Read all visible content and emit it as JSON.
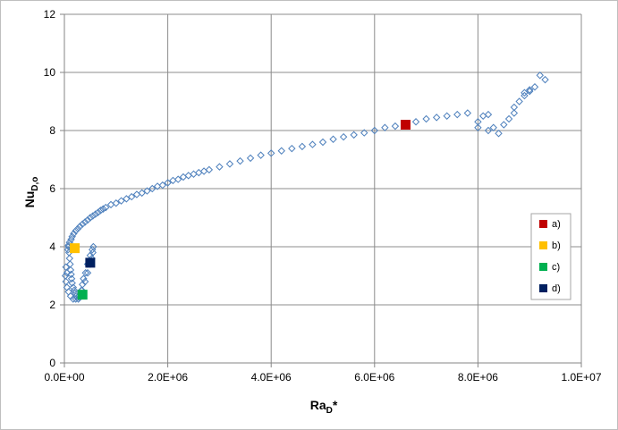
{
  "chart_data": {
    "type": "scatter",
    "title": "",
    "xlabel": "Ra",
    "xlabel_sub": "D",
    "xlabel_suffix": "*",
    "ylabel": "Nu",
    "ylabel_sub": "D,o",
    "xlim": [
      0,
      10000000
    ],
    "ylim": [
      0,
      12
    ],
    "x_ticks": [
      0,
      2000000,
      4000000,
      6000000,
      8000000,
      10000000
    ],
    "x_tick_labels": [
      "0.0E+00",
      "2.0E+06",
      "4.0E+06",
      "6.0E+06",
      "8.0E+06",
      "1.0E+07"
    ],
    "y_ticks": [
      0,
      2,
      4,
      6,
      8,
      10,
      12
    ],
    "y_tick_labels": [
      "0",
      "2",
      "4",
      "6",
      "8",
      "10",
      "12"
    ],
    "grid": true,
    "legend_position": "right",
    "scatter_color": "#4f81bd",
    "series": [
      {
        "marker": "diamond-open",
        "x": [
          50000,
          30000,
          20000,
          30000,
          50000,
          80000,
          120000,
          170000,
          220000,
          280000,
          340000,
          400000,
          450000,
          500000,
          530000,
          550000,
          560000,
          540000,
          500000,
          450000,
          410000,
          370000,
          350000,
          330000,
          310000,
          290000,
          270000,
          250000,
          230000,
          210000,
          190000,
          170000,
          150000,
          140000,
          130000,
          120000,
          110000,
          100000,
          90000,
          80000,
          70000,
          80000,
          100000,
          130000,
          150000,
          180000,
          220000,
          260000,
          300000,
          350000,
          400000,
          450000,
          500000,
          550000,
          600000,
          650000,
          700000,
          750000,
          800000,
          900000,
          1000000,
          1100000,
          1200000,
          1300000,
          1400000,
          1500000,
          1600000,
          1700000,
          1800000,
          1900000,
          2000000,
          2100000,
          2200000,
          2300000,
          2400000,
          2500000,
          2600000,
          2700000,
          2800000,
          3000000,
          3200000,
          3400000,
          3600000,
          3800000,
          4000000,
          4200000,
          4400000,
          4600000,
          4800000,
          5000000,
          5200000,
          5400000,
          5600000,
          5800000,
          6000000,
          6200000,
          6400000,
          6600000,
          6800000,
          7000000,
          7200000,
          7400000,
          7600000,
          7800000,
          8000000,
          8100000,
          8200000,
          8300000,
          8400000,
          8500000,
          8600000,
          8700000,
          8800000,
          8900000,
          9000000,
          9100000,
          9200000,
          9300000,
          8700000,
          8900000,
          9000000,
          8000000,
          8200000
        ],
        "y": [
          3.1,
          3.3,
          3.0,
          2.8,
          2.6,
          2.45,
          2.3,
          2.2,
          2.2,
          2.3,
          2.5,
          2.8,
          3.1,
          3.4,
          3.6,
          3.8,
          4.0,
          3.9,
          3.7,
          3.4,
          3.1,
          2.9,
          2.7,
          2.5,
          2.35,
          2.25,
          2.2,
          2.25,
          2.3,
          2.4,
          2.5,
          2.6,
          2.75,
          2.9,
          3.05,
          3.2,
          3.4,
          3.6,
          3.8,
          4.0,
          3.9,
          4.05,
          4.15,
          4.25,
          4.35,
          4.45,
          4.55,
          4.62,
          4.7,
          4.78,
          4.85,
          4.92,
          5.0,
          5.06,
          5.12,
          5.18,
          5.25,
          5.3,
          5.35,
          5.45,
          5.5,
          5.58,
          5.65,
          5.72,
          5.8,
          5.85,
          5.92,
          6.0,
          6.08,
          6.12,
          6.2,
          6.28,
          6.32,
          6.4,
          6.45,
          6.5,
          6.55,
          6.6,
          6.65,
          6.75,
          6.85,
          6.95,
          7.05,
          7.15,
          7.22,
          7.3,
          7.38,
          7.45,
          7.52,
          7.6,
          7.7,
          7.78,
          7.85,
          7.92,
          8.0,
          8.1,
          8.15,
          8.2,
          8.3,
          8.4,
          8.45,
          8.5,
          8.55,
          8.6,
          8.3,
          8.5,
          8.0,
          8.1,
          7.9,
          8.2,
          8.4,
          8.8,
          9.0,
          9.2,
          9.4,
          9.5,
          9.9,
          9.75,
          8.6,
          9.3,
          9.35,
          8.1,
          8.55
        ]
      }
    ],
    "highlights": [
      {
        "label": "a)",
        "x": 6600000,
        "y": 8.2,
        "color": "#c00000"
      },
      {
        "label": "b)",
        "x": 200000,
        "y": 3.95,
        "color": "#ffc000"
      },
      {
        "label": "c)",
        "x": 350000,
        "y": 2.35,
        "color": "#00b050"
      },
      {
        "label": "d)",
        "x": 500000,
        "y": 3.45,
        "color": "#002060"
      }
    ],
    "legend": [
      {
        "label": "a)",
        "color": "#c00000"
      },
      {
        "label": "b)",
        "color": "#ffc000"
      },
      {
        "label": "c)",
        "color": "#00b050"
      },
      {
        "label": "d)",
        "color": "#002060"
      }
    ]
  }
}
